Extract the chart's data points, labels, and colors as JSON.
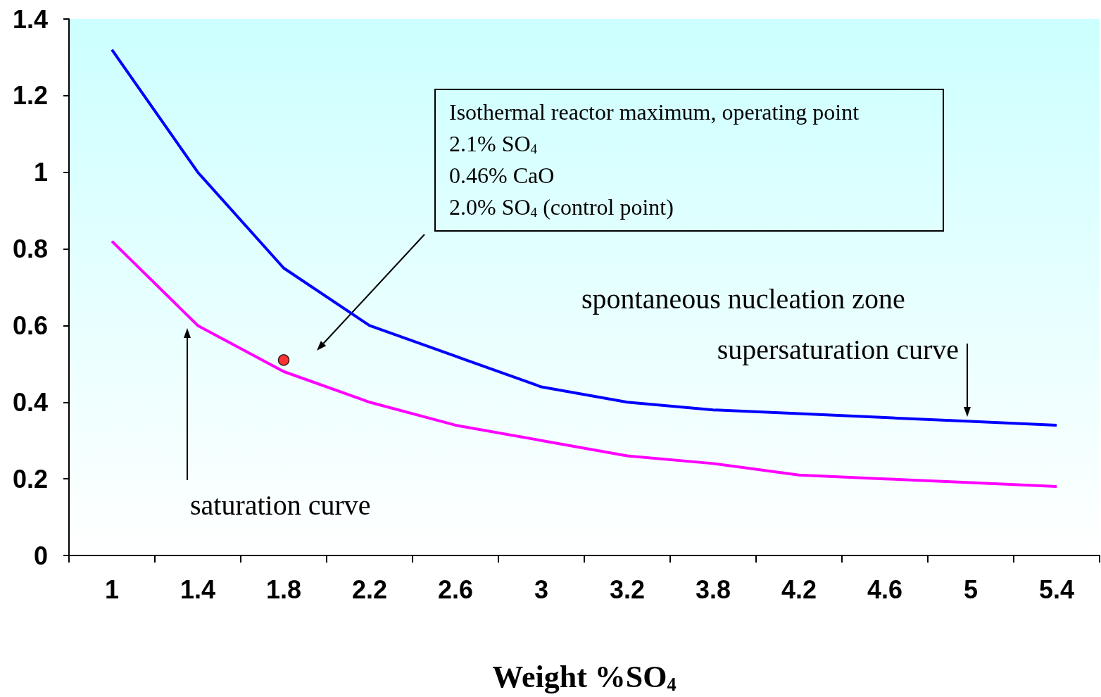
{
  "chart_data": {
    "type": "line",
    "xlabel": "Weight %SO$_{4}$",
    "categories": [
      "1",
      "1.4",
      "1.8",
      "2.2",
      "2.6",
      "3",
      "3.2",
      "3.8",
      "4.2",
      "4.6",
      "5",
      "5.4"
    ],
    "series": [
      {
        "color": "#0000ff",
        "values": [
          1.32,
          1.0,
          0.75,
          0.6,
          0.52,
          0.44,
          0.4,
          0.38,
          0.37,
          0.36,
          0.35,
          0.34
        ]
      },
      {
        "color": "#ff00ff",
        "values": [
          0.82,
          0.6,
          0.48,
          0.4,
          0.34,
          0.3,
          0.26,
          0.24,
          0.21,
          0.2,
          0.19,
          0.18
        ]
      },
      {
        "type": "scatter",
        "color": "#ff0000",
        "x": [
          "1.8"
        ],
        "values": [
          0.51
        ],
        "marker": "circle"
      }
    ],
    "ylim": [
      0,
      1.4
    ],
    "yticks": [
      0,
      0.2,
      0.4,
      0.6,
      0.8,
      1,
      1.2,
      1.4
    ],
    "grid": false,
    "marker": "none",
    "annotations": [
      "Isothermal reactor maximum, operating point\n2.1% SO$_{4}$\n0.46% CaO\n2.0% SO$_{4}$ (control point)",
      "spontaneous nucleation zone",
      "supersaturation curve",
      "saturation curve"
    ]
  }
}
